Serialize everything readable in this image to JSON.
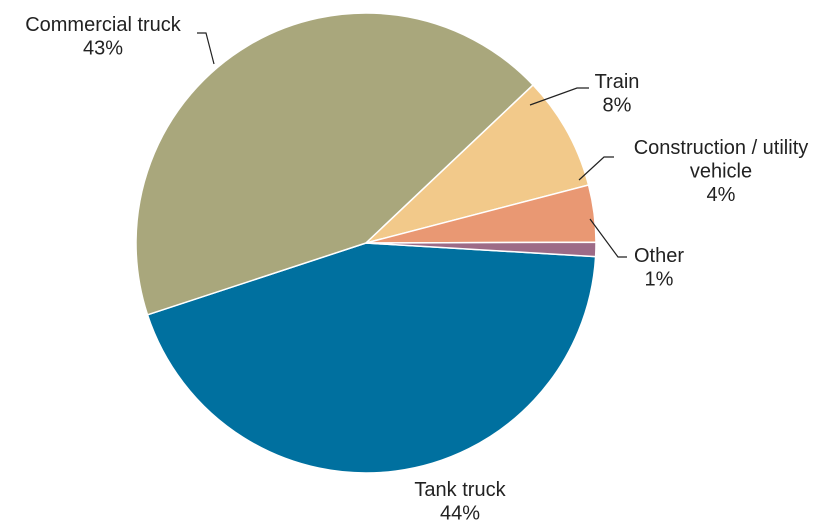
{
  "chart_data": {
    "type": "pie",
    "title": "",
    "slices": [
      {
        "label": "Tank truck",
        "label_lines": [
          "Tank truck"
        ],
        "value": 44,
        "value_label": "44%",
        "color": "#00709f"
      },
      {
        "label": "Commercial truck",
        "label_lines": [
          "Commercial truck"
        ],
        "value": 43,
        "value_label": "43%",
        "color": "#a9a77c"
      },
      {
        "label": "Train",
        "label_lines": [
          "Train"
        ],
        "value": 8,
        "value_label": "8%",
        "color": "#f2c98a"
      },
      {
        "label": "Construction / utility vehicle",
        "label_lines": [
          "Construction / utility",
          "vehicle"
        ],
        "value": 4,
        "value_label": "4%",
        "color": "#e99873"
      },
      {
        "label": "Other",
        "label_lines": [
          "Other"
        ],
        "value": 1,
        "value_label": "1%",
        "color": "#9d6b87"
      }
    ]
  }
}
